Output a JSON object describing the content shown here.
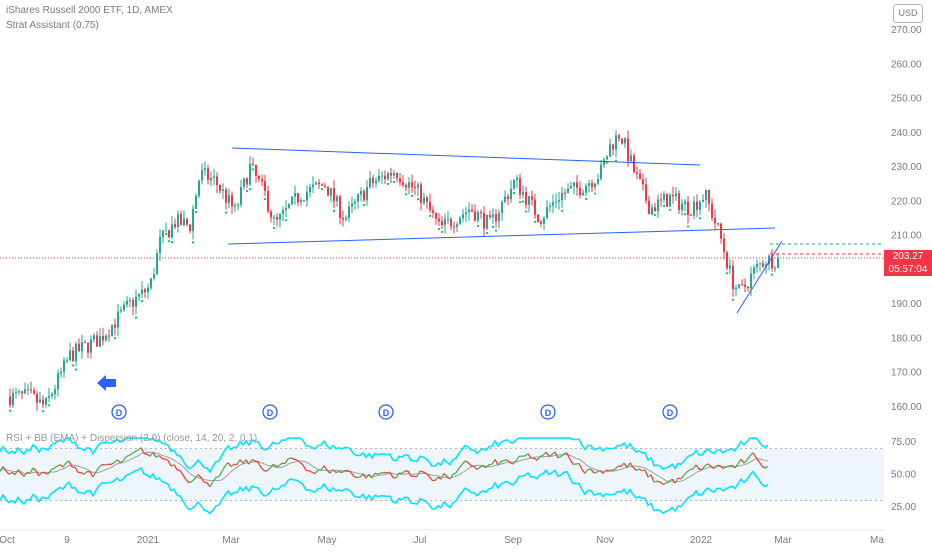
{
  "legend": {
    "symbol_line": "iShares Russell 2000 ETF, 1D, AMEX",
    "indicator_line": "Strat Assistant (0.75)",
    "rsi_line": "RSI + BB (EMA) + Dispersion (2.0) (close, 14, 20, 2, 0.1)"
  },
  "scale_button": "USD",
  "price_axis": [
    "270.00",
    "260.00",
    "250.00",
    "240.00",
    "230.00",
    "220.00",
    "210.00",
    "200.00",
    "190.00",
    "180.00",
    "170.00",
    "160.00"
  ],
  "last_price": {
    "value": "203.27",
    "countdown": "05:57:04"
  },
  "rsi_axis": [
    "75.00",
    "50.00",
    "25.00"
  ],
  "time_axis": [
    "Oct",
    "9",
    "2021",
    "Mar",
    "May",
    "Jul",
    "Sep",
    "Nov",
    "2022",
    "Mar",
    "Ma"
  ],
  "dividend_marker": "D",
  "dividend_count": 5,
  "colors": {
    "up": "#26a69a",
    "down": "#f23645",
    "trend": "#2962ff",
    "bb": "#00e5ff",
    "rsi_up": "#4caf50",
    "rsi_down": "#ff3b30",
    "basis": "#9e9e9e",
    "green_dot": "#00c853"
  },
  "icons": {
    "left_arrow": "arrow-left-icon",
    "dividend": "dividend-badge-icon"
  },
  "chart_data": {
    "type": "candlestick",
    "series": [
      {
        "name": "iShares Russell 2000 ETF",
        "approx_close_path": [
          {
            "date": "Oct",
            "close": 163
          },
          {
            "date": "Nov",
            "close": 168
          },
          {
            "date": "Dec",
            "close": 190
          },
          {
            "date": "2021",
            "close": 197
          },
          {
            "date": "Feb",
            "close": 225
          },
          {
            "date": "Mar",
            "close": 222
          },
          {
            "date": "Apr",
            "close": 224
          },
          {
            "date": "May",
            "close": 220
          },
          {
            "date": "Jun",
            "close": 228
          },
          {
            "date": "Jul",
            "close": 218
          },
          {
            "date": "Aug",
            "close": 218
          },
          {
            "date": "Sep",
            "close": 222
          },
          {
            "date": "Oct",
            "close": 225
          },
          {
            "date": "Nov",
            "close": 240
          },
          {
            "date": "Dec",
            "close": 220
          },
          {
            "date": "2022",
            "close": 210
          },
          {
            "date": "Jan end",
            "close": 195
          },
          {
            "date": "Feb",
            "close": 203
          },
          {
            "date": "last",
            "close": 203.27
          }
        ]
      }
    ],
    "ylim": [
      155,
      272
    ],
    "rsi_ylim": [
      20,
      80
    ]
  }
}
